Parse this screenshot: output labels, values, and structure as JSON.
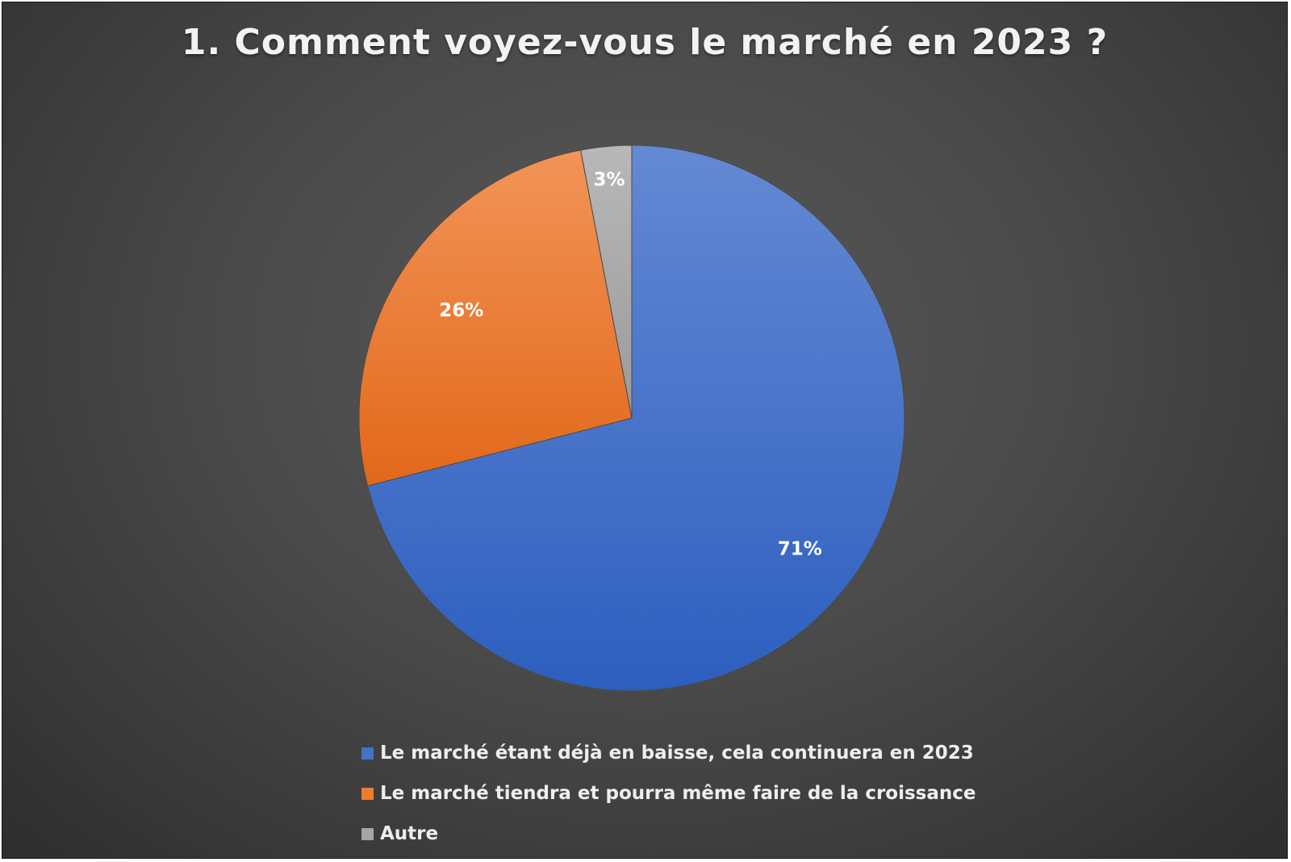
{
  "chart_data": {
    "type": "pie",
    "title": "1. Comment voyez-vous le marché en 2023 ?",
    "categories": [
      "Le marché étant déjà en baisse, cela continuera en 2023",
      "Le marché tiendra et pourra même faire de la croissance",
      "Autre"
    ],
    "values": [
      71,
      26,
      3
    ],
    "data_labels": [
      "71%",
      "26%",
      "3%"
    ],
    "colors": [
      "#4472C4",
      "#ED7D31",
      "#A5A5A5"
    ],
    "legend_position": "bottom",
    "start_angle": "12 o'clock, clockwise"
  }
}
